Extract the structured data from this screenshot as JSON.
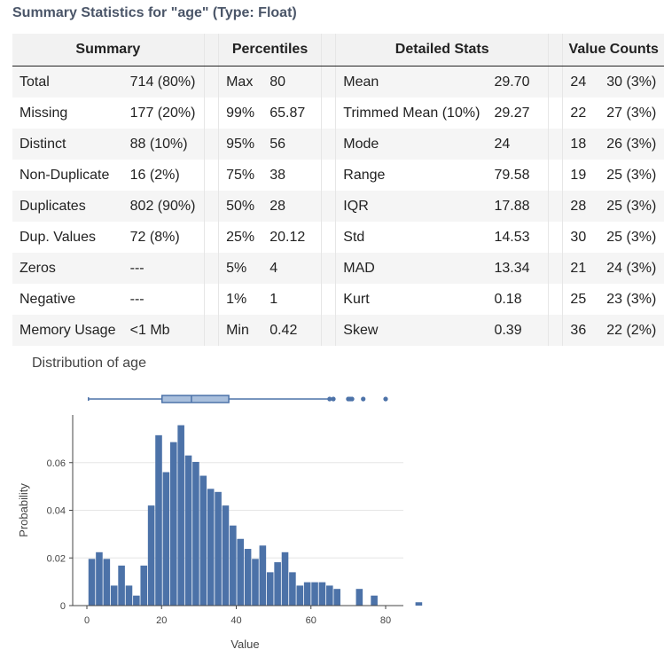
{
  "title": "Summary Statistics for \"age\" (Type: Float)",
  "headers": {
    "summary": "Summary",
    "percentiles": "Percentiles",
    "detailed": "Detailed Stats",
    "value_counts": "Value Counts"
  },
  "rows": [
    {
      "s_label": "Total",
      "s_value": "714 (80%)",
      "p_label": "Max",
      "p_value": "80",
      "d_label": "Mean",
      "d_value": "29.70",
      "v_value": "24",
      "v_count": "30 (3%)"
    },
    {
      "s_label": "Missing",
      "s_value": "177 (20%)",
      "p_label": "99%",
      "p_value": "65.87",
      "d_label": "Trimmed Mean (10%)",
      "d_value": "29.27",
      "v_value": "22",
      "v_count": "27 (3%)"
    },
    {
      "s_label": "Distinct",
      "s_value": "88 (10%)",
      "p_label": "95%",
      "p_value": "56",
      "d_label": "Mode",
      "d_value": "24",
      "v_value": "18",
      "v_count": "26 (3%)"
    },
    {
      "s_label": "Non-Duplicate",
      "s_value": "16 (2%)",
      "p_label": "75%",
      "p_value": "38",
      "d_label": "Range",
      "d_value": "79.58",
      "v_value": "19",
      "v_count": "25 (3%)"
    },
    {
      "s_label": "Duplicates",
      "s_value": "802 (90%)",
      "p_label": "50%",
      "p_value": "28",
      "d_label": "IQR",
      "d_value": "17.88",
      "v_value": "28",
      "v_count": "25 (3%)"
    },
    {
      "s_label": "Dup. Values",
      "s_value": "72 (8%)",
      "p_label": "25%",
      "p_value": "20.12",
      "d_label": "Std",
      "d_value": "14.53",
      "v_value": "30",
      "v_count": "25 (3%)"
    },
    {
      "s_label": "Zeros",
      "s_value": "---",
      "p_label": "5%",
      "p_value": "4",
      "d_label": "MAD",
      "d_value": "13.34",
      "v_value": "21",
      "v_count": "24 (3%)"
    },
    {
      "s_label": "Negative",
      "s_value": "---",
      "p_label": "1%",
      "p_value": "1",
      "d_label": "Kurt",
      "d_value": "0.18",
      "v_value": "25",
      "v_count": "23 (3%)"
    },
    {
      "s_label": "Memory Usage",
      "s_value": "<1 Mb",
      "p_label": "Min",
      "p_value": "0.42",
      "d_label": "Skew",
      "d_value": "0.39",
      "v_value": "36",
      "v_count": "22 (2%)"
    }
  ],
  "chart_title": "Distribution of age",
  "chart_data": {
    "type": "bar",
    "title": "Distribution of age",
    "xlabel": "Value",
    "ylabel": "Probability",
    "xlim": [
      0,
      82
    ],
    "ylim": [
      0,
      0.08
    ],
    "xticks": [
      0,
      20,
      40,
      60,
      80
    ],
    "xtick_labels": [
      "0",
      "20",
      "40",
      "60",
      "80"
    ],
    "yticks": [
      0,
      0.02,
      0.04,
      0.06
    ],
    "ytick_labels": [
      "0",
      "0.02",
      "0.04",
      "0.06"
    ],
    "bin_start": 0.42,
    "bin_width": 1.99,
    "values": [
      0.0196,
      0.0224,
      0.0196,
      0.0084,
      0.0168,
      0.0084,
      0.0042,
      0.0168,
      0.042,
      0.0715,
      0.056,
      0.0686,
      0.0757,
      0.063,
      0.0603,
      0.0545,
      0.049,
      0.0477,
      0.042,
      0.0336,
      0.028,
      0.0238,
      0.0196,
      0.0252,
      0.014,
      0.0182,
      0.0224,
      0.014,
      0.0084,
      0.0098,
      0.0098,
      0.0098,
      0.0084,
      0.007,
      0.0,
      0.0,
      0.007,
      0.0,
      0.0042,
      0.0,
      0.0,
      0.0,
      0.0,
      0.0,
      0.0014
    ],
    "boxplot": {
      "min": 0.42,
      "q1": 20.12,
      "median": 28,
      "q3": 38,
      "whisker_high": 64.8,
      "outliers": [
        65.0,
        66.0,
        70.0,
        70.5,
        71.0,
        74.0,
        80.0
      ]
    },
    "bar_color": "#4c72a8"
  }
}
